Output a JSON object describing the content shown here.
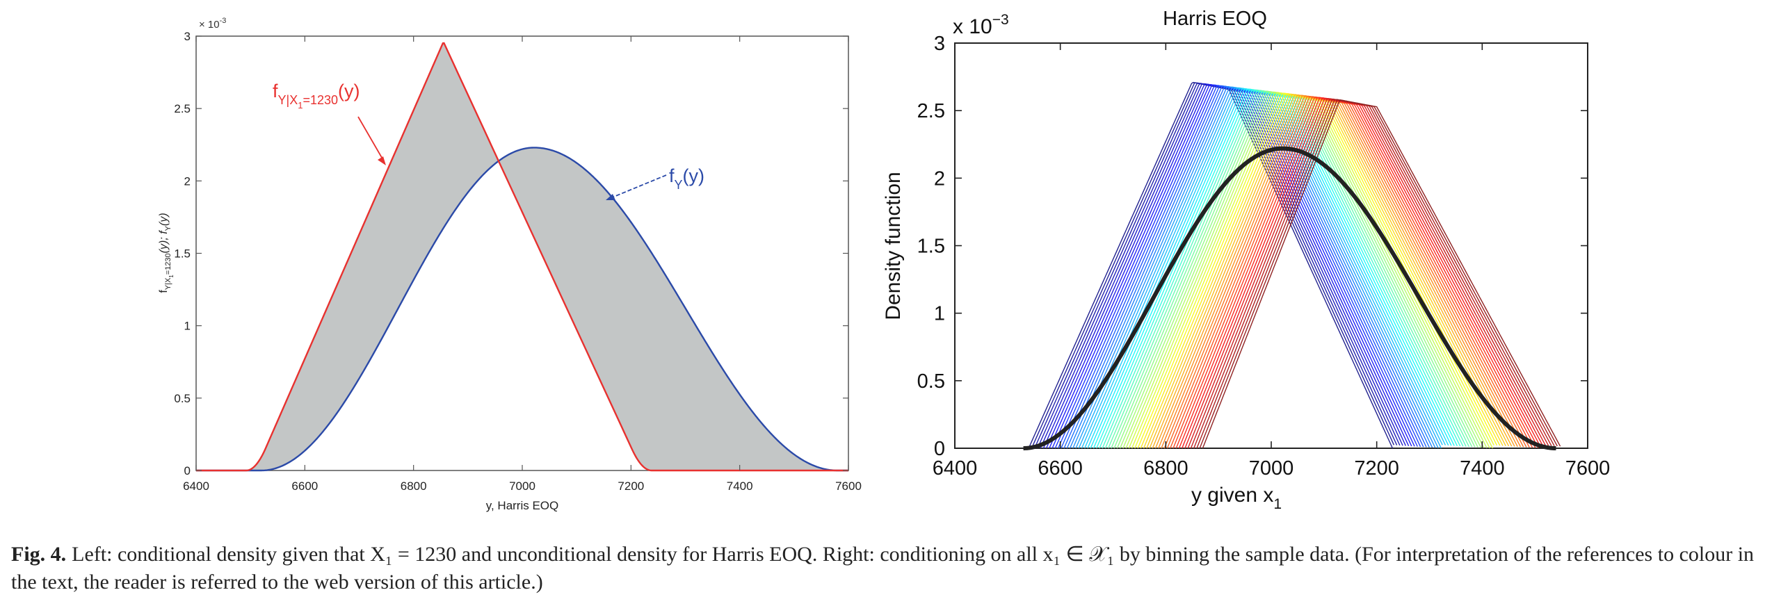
{
  "chart_data": [
    {
      "type": "area",
      "title": "",
      "xlabel": "y, Harris EOQ",
      "ylabel_main": "f",
      "ylabel_sub1": "Y|X",
      "ylabel_sub2": "1",
      "ylabel_sub3": "=1230",
      "ylabel_mid": "(y);  f",
      "ylabel_sub4": "Y",
      "ylabel_end": "(y)",
      "exponent_label": "× 10",
      "exponent_power": "-3",
      "xlim": [
        6400,
        7600
      ],
      "ylim": [
        0,
        3.0
      ],
      "y_scale": 0.001,
      "xticks": [
        "6400",
        "6600",
        "6800",
        "7000",
        "7200",
        "7400",
        "7600"
      ],
      "yticks": [
        "0",
        "0.5",
        "1",
        "1.5",
        "2",
        "2.5",
        "3"
      ],
      "grid": false,
      "fill_color": "#c3c6c6",
      "series": [
        {
          "label_main": "f",
          "label_sub1": "Y|X",
          "label_sub2": "1",
          "label_sub3": "=1230",
          "label_end": "(y)",
          "color": "#e8312f",
          "shape": "triangular",
          "support": [
            6510,
            7220
          ],
          "mode": 6855,
          "peak": 2.96
        },
        {
          "label_main": "f",
          "label_sub": "Y",
          "label_end": "(y)",
          "color": "#2b4aa8",
          "shape": "bell",
          "support": [
            6520,
            7580
          ],
          "mode": 7022,
          "peak": 2.23
        }
      ]
    },
    {
      "type": "line",
      "title": "Harris EOQ",
      "xlabel_main": "y given x",
      "xlabel_sub": "1",
      "ylabel": "Density function",
      "exponent_label": "x 10",
      "exponent_power": "−3",
      "xlim": [
        6400,
        7600
      ],
      "ylim": [
        0,
        3.0
      ],
      "y_scale": 0.001,
      "xticks": [
        "6400",
        "6600",
        "6800",
        "7000",
        "7200",
        "7400",
        "7600"
      ],
      "yticks": [
        "0",
        "0.5",
        "1",
        "1.5",
        "2",
        "2.5",
        "3"
      ],
      "grid": false,
      "colormap": "jet",
      "conditional_curves": {
        "count": 60,
        "first": {
          "support": [
            6540,
            7230
          ],
          "mode": 6850,
          "peak": 2.71,
          "top_end": 6920
        },
        "last": {
          "support": [
            6870,
            7550
          ],
          "mode": 7130,
          "peak": 2.58,
          "top_end": 7200
        }
      },
      "unconditional": {
        "color": "#222222",
        "support": [
          6530,
          7540
        ],
        "mode": 7022,
        "peak": 2.22
      }
    }
  ],
  "caption": {
    "label": "Fig. 4.",
    "text": "Left: conditional density given that X₁ = 1230 and unconditional density for Harris EOQ. Right: conditioning on all x₁ ∈ 𝒳₁ by binning the sample data. (For interpretation of the references to colour in the text, the reader is referred to the web version of this article.)"
  }
}
